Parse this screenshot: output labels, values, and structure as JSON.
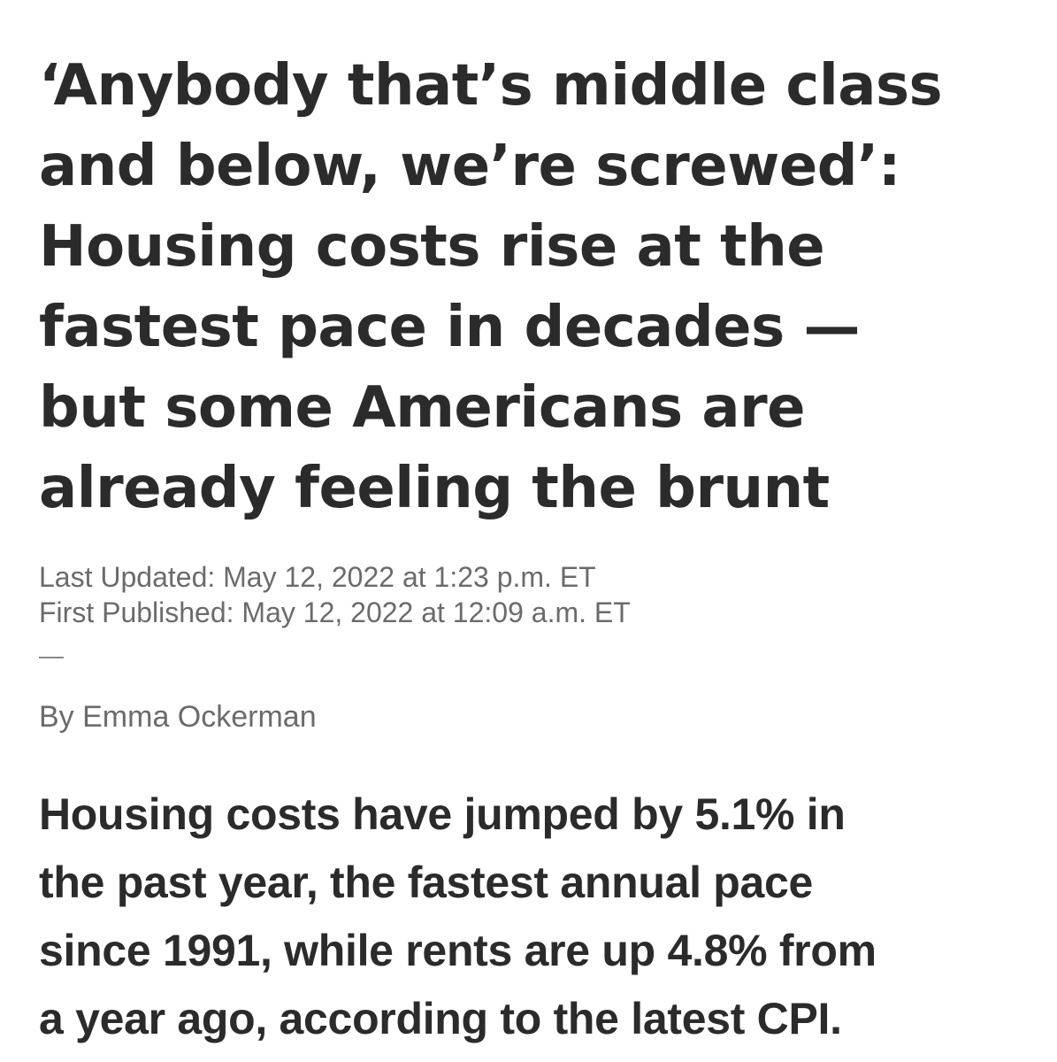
{
  "article": {
    "headline_lines": [
      "‘Anybody that’s middle class",
      "and below, we’re screwed’:",
      "Housing costs rise at the",
      "fastest pace in decades —",
      "but some Americans are",
      "already feeling the brunt"
    ],
    "last_updated": "Last Updated: May 12, 2022 at 1:23 p.m. ET",
    "first_published": "First Published: May 12, 2022 at 12:09 a.m. ET",
    "byline": "By Emma Ockerman",
    "summary_lines": [
      "Housing costs have jumped by 5.1% in",
      "the past year, the fastest annual pace",
      "since 1991, while rents are up 4.8% from",
      "a year ago, according to the latest CPI."
    ]
  },
  "colors": {
    "text": "#2b2b2b",
    "meta": "#6b6b6b",
    "background": "#ffffff"
  }
}
